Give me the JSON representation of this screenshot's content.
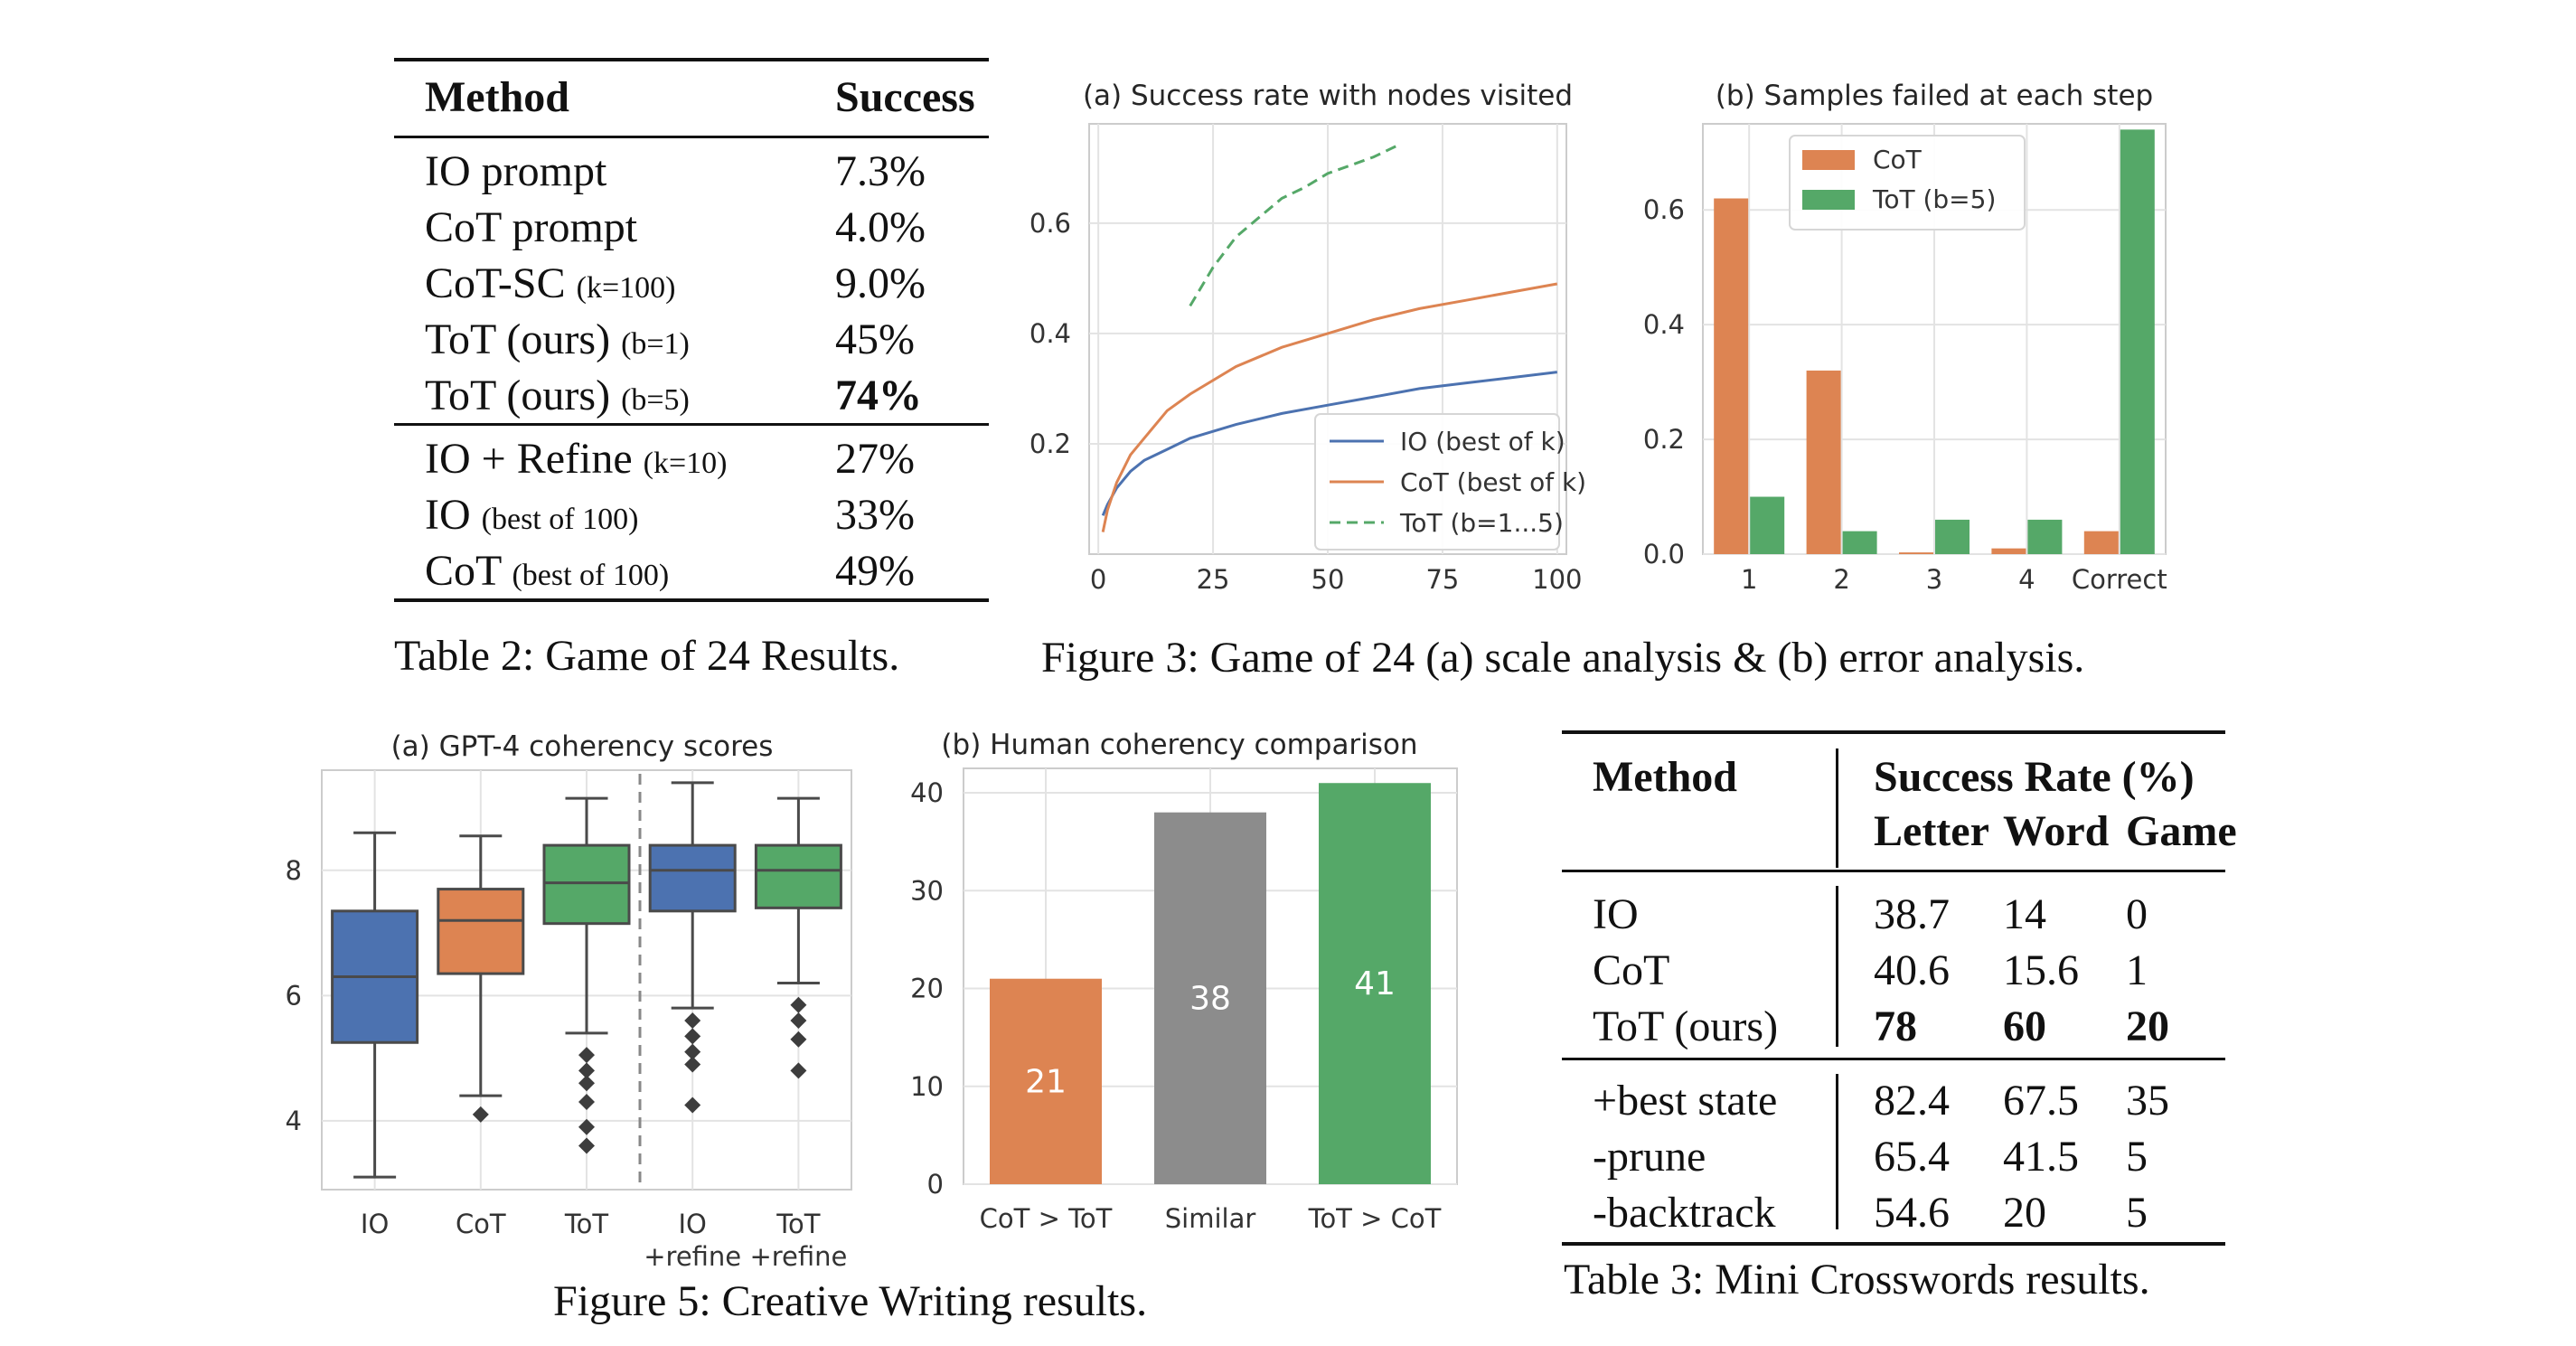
{
  "table2": {
    "caption": "Table 2: Game of 24 Results.",
    "headers": [
      "Method",
      "Success"
    ],
    "rows_group1": [
      {
        "method": "IO prompt",
        "param": "",
        "success": "7.3%",
        "bold": false
      },
      {
        "method": "CoT prompt",
        "param": "",
        "success": "4.0%",
        "bold": false
      },
      {
        "method": "CoT-SC",
        "param": "(k=100)",
        "success": "9.0%",
        "bold": false
      },
      {
        "method": "ToT (ours)",
        "param": "(b=1)",
        "success": "45%",
        "bold": false
      },
      {
        "method": "ToT (ours)",
        "param": "(b=5)",
        "success": "74%",
        "bold": true
      }
    ],
    "rows_group2": [
      {
        "method": "IO + Refine",
        "param": "(k=10)",
        "success": "27%",
        "bold": false
      },
      {
        "method": "IO",
        "param": "(best of 100)",
        "success": "33%",
        "bold": false
      },
      {
        "method": "CoT",
        "param": "(best of 100)",
        "success": "49%",
        "bold": false
      }
    ]
  },
  "figure3": {
    "caption": "Figure 3: Game of 24 (a) scale analysis & (b) error analysis."
  },
  "figure5": {
    "caption": "Figure 5: Creative Writing results."
  },
  "table3": {
    "caption": "Table 3: Mini Crosswords results.",
    "header_method": "Method",
    "header_group": "Success Rate (%)",
    "subheaders": [
      "Letter",
      "Word",
      "Game"
    ],
    "rows_group1": [
      {
        "method": "IO",
        "values": [
          "38.7",
          "14",
          "0"
        ],
        "bold": false
      },
      {
        "method": "CoT",
        "values": [
          "40.6",
          "15.6",
          "1"
        ],
        "bold": false
      },
      {
        "method": "ToT (ours)",
        "values": [
          "78",
          "60",
          "20"
        ],
        "bold": true
      }
    ],
    "rows_group2": [
      {
        "method": "+best state",
        "values": [
          "82.4",
          "67.5",
          "35"
        ],
        "bold": false
      },
      {
        "method": "-prune",
        "values": [
          "65.4",
          "41.5",
          "5"
        ],
        "bold": false
      },
      {
        "method": "-backtrack",
        "values": [
          "54.6",
          "20",
          "5"
        ],
        "bold": false
      }
    ]
  },
  "chart_data": [
    {
      "id": "fig3a",
      "type": "line",
      "title": "(a) Success rate with nodes visited",
      "xlabel": "",
      "ylabel": "",
      "xlim": [
        -2,
        102
      ],
      "ylim": [
        0.0,
        0.78
      ],
      "xticks": [
        0,
        25,
        50,
        75,
        100
      ],
      "yticks": [
        0.2,
        0.4,
        0.6
      ],
      "ytick_labels": [
        "0.2",
        "0.4",
        "0.6"
      ],
      "grid": true,
      "legend_position": "lower-right",
      "series": [
        {
          "name": "IO (best of k)",
          "color": "#4c72b0",
          "dash": false,
          "x": [
            1,
            2,
            4,
            7,
            10,
            15,
            20,
            30,
            40,
            50,
            60,
            70,
            80,
            90,
            100
          ],
          "y": [
            0.07,
            0.09,
            0.12,
            0.15,
            0.17,
            0.19,
            0.21,
            0.235,
            0.255,
            0.27,
            0.285,
            0.3,
            0.31,
            0.32,
            0.33
          ]
        },
        {
          "name": "CoT (best of k)",
          "color": "#dd8452",
          "dash": false,
          "x": [
            1,
            2,
            4,
            7,
            10,
            15,
            20,
            30,
            40,
            50,
            60,
            70,
            80,
            90,
            100
          ],
          "y": [
            0.04,
            0.08,
            0.13,
            0.18,
            0.21,
            0.26,
            0.29,
            0.34,
            0.375,
            0.4,
            0.425,
            0.445,
            0.46,
            0.475,
            0.49
          ]
        },
        {
          "name": "ToT (b=1...5)",
          "color": "#55a868",
          "dash": true,
          "x": [
            20,
            25,
            30,
            35,
            40,
            45,
            50,
            55,
            60,
            65
          ],
          "y": [
            0.45,
            0.52,
            0.575,
            0.61,
            0.645,
            0.665,
            0.69,
            0.705,
            0.72,
            0.74
          ]
        }
      ]
    },
    {
      "id": "fig3b",
      "type": "bar",
      "title": "(b) Samples failed at each step",
      "categories": [
        "1",
        "2",
        "3",
        "4",
        "Correct"
      ],
      "ylim": [
        0.0,
        0.75
      ],
      "yticks": [
        0.0,
        0.2,
        0.4,
        0.6
      ],
      "ytick_labels": [
        "0.0",
        "0.2",
        "0.4",
        "0.6"
      ],
      "grid": true,
      "legend_position": "top-center",
      "series": [
        {
          "name": "CoT",
          "color": "#dd8452",
          "values": [
            0.62,
            0.32,
            0.003,
            0.01,
            0.04
          ]
        },
        {
          "name": "ToT (b=5)",
          "color": "#55a868",
          "values": [
            0.1,
            0.04,
            0.06,
            0.06,
            0.74
          ]
        }
      ]
    },
    {
      "id": "fig5a",
      "type": "box",
      "title": "(a) GPT-4 coherency scores",
      "categories": [
        "IO",
        "CoT",
        "ToT",
        "IO\n+refine",
        "ToT\n+refine"
      ],
      "category_lines": [
        [
          "IO"
        ],
        [
          "CoT"
        ],
        [
          "ToT"
        ],
        [
          "IO",
          "+refine"
        ],
        [
          "ToT",
          "+refine"
        ]
      ],
      "ylim": [
        2.9,
        9.6
      ],
      "yticks": [
        4,
        6,
        8
      ],
      "grid": true,
      "colors": [
        "#4c72b0",
        "#dd8452",
        "#55a868",
        "#4c72b0",
        "#55a868"
      ],
      "boxes": [
        {
          "whislo": 3.1,
          "q1": 5.25,
          "med": 6.3,
          "q3": 7.35,
          "whishi": 8.6,
          "fliers": []
        },
        {
          "whislo": 4.4,
          "q1": 6.35,
          "med": 7.2,
          "q3": 7.7,
          "whishi": 8.55,
          "fliers": [
            4.1
          ]
        },
        {
          "whislo": 5.4,
          "q1": 7.15,
          "med": 7.8,
          "q3": 8.4,
          "whishi": 9.15,
          "fliers": [
            5.05,
            4.8,
            4.6,
            4.3,
            3.9,
            3.6
          ]
        },
        {
          "whislo": 5.8,
          "q1": 7.35,
          "med": 8.0,
          "q3": 8.4,
          "whishi": 9.4,
          "fliers": [
            5.6,
            5.35,
            5.1,
            4.9,
            4.25
          ]
        },
        {
          "whislo": 6.2,
          "q1": 7.4,
          "med": 8.0,
          "q3": 8.4,
          "whishi": 9.15,
          "fliers": [
            5.85,
            5.6,
            5.3,
            4.8
          ]
        }
      ]
    },
    {
      "id": "fig5b",
      "type": "bar",
      "title": "(b) Human coherency comparison",
      "categories": [
        "CoT > ToT",
        "Similar",
        "ToT > CoT"
      ],
      "values": [
        21,
        38,
        41
      ],
      "data_labels": [
        "21",
        "38",
        "41"
      ],
      "colors": [
        "#dd8452",
        "#8c8c8c",
        "#55a868"
      ],
      "ylim": [
        0,
        42.5
      ],
      "yticks": [
        0,
        10,
        20,
        30,
        40
      ],
      "grid": true
    }
  ]
}
